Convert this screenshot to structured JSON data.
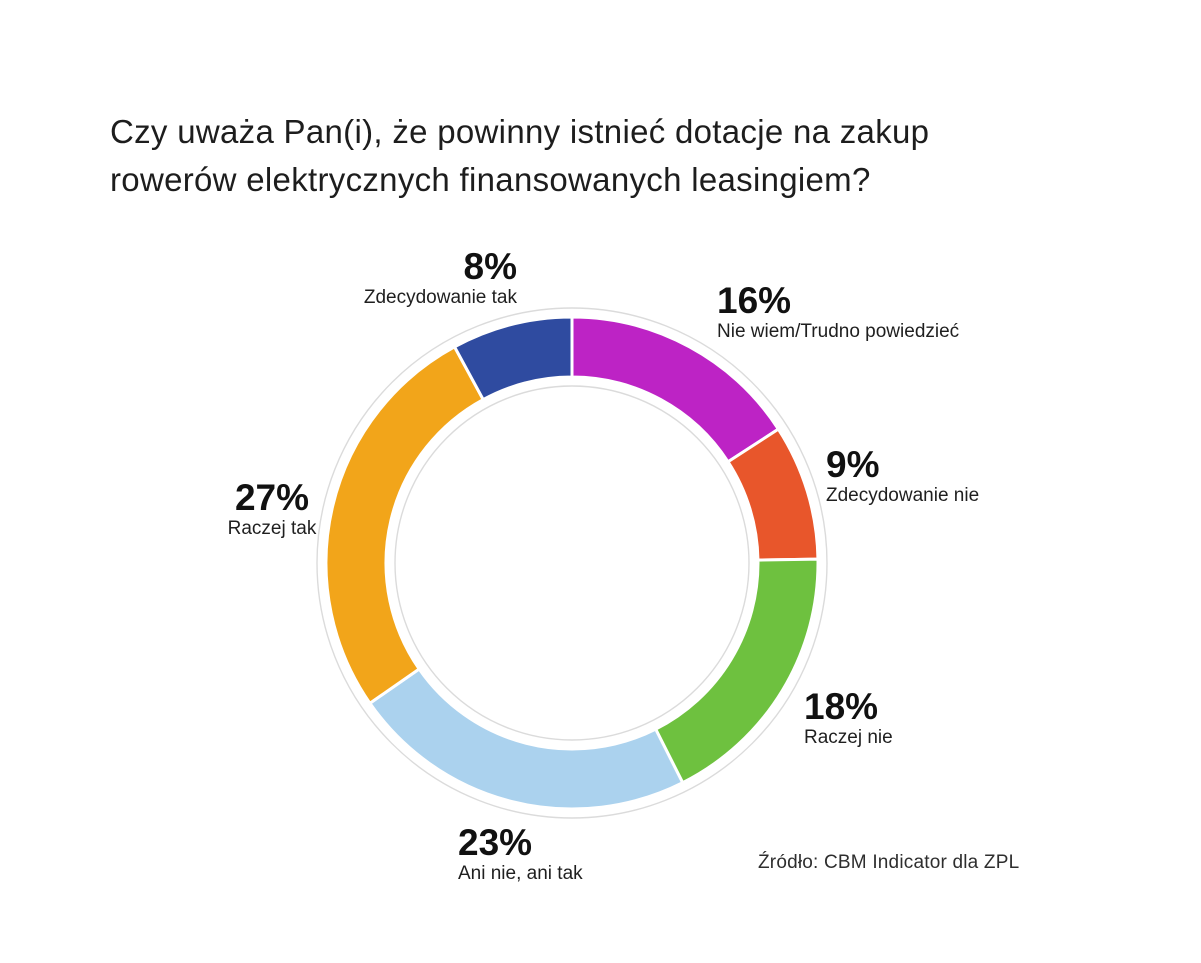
{
  "title": "Czy uważa Pan(i), że powinny istnieć dotacje na zakup rowerów elektrycznych finansowanych leasingiem?",
  "source": "Źródło: CBM Indicator dla ZPL",
  "callouts": [
    {
      "pct": "8%",
      "text": "Zdecydowanie tak"
    },
    {
      "pct": "16%",
      "text": "Nie wiem/Trudno powiedzieć"
    },
    {
      "pct": "9%",
      "text": "Zdecydowanie nie"
    },
    {
      "pct": "18%",
      "text": "Raczej nie"
    },
    {
      "pct": "23%",
      "text": "Ani nie, ani tak"
    },
    {
      "pct": "27%",
      "text": "Raczej tak"
    }
  ],
  "chart_data": {
    "type": "pie",
    "subtype": "donut",
    "title": "Czy uważa Pan(i), że powinny istnieć dotacje na zakup rowerów elektrycznych finansowanych leasingiem?",
    "start_angle_deg": 0,
    "direction": "clockwise",
    "hole": true,
    "segments": [
      {
        "label": "Nie wiem/Trudno powiedzieć",
        "value_pct": 16,
        "color": "#BD23C5"
      },
      {
        "label": "Zdecydowanie nie",
        "value_pct": 9,
        "color": "#E8562B"
      },
      {
        "label": "Raczej nie",
        "value_pct": 18,
        "color": "#6EC13F"
      },
      {
        "label": "Ani nie, ani tak",
        "value_pct": 23,
        "color": "#ABD2EE"
      },
      {
        "label": "Raczej tak",
        "value_pct": 27,
        "color": "#F2A51A"
      },
      {
        "label": "Zdecydowanie tak",
        "value_pct": 8,
        "color": "#2F4BA0"
      }
    ],
    "outline_color": "#DBDBDB",
    "separator_color": "#FFFFFF"
  }
}
